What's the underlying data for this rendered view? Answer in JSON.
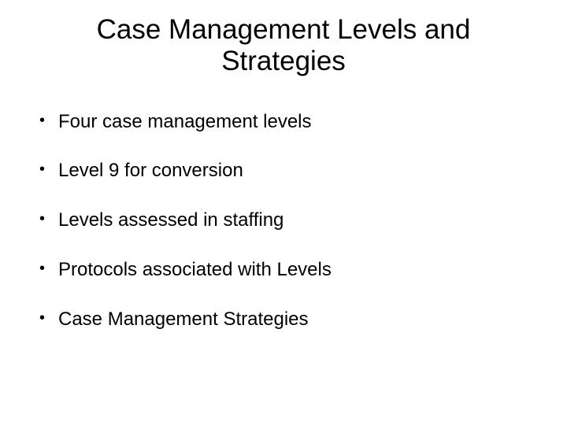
{
  "slide": {
    "title": "Case Management Levels and Strategies",
    "title_fontsize": 35,
    "title_color": "#000000",
    "bullets": [
      "Four case management levels",
      "Level 9 for conversion",
      "Levels assessed in staffing",
      "Protocols associated with Levels",
      "Case Management Strategies"
    ],
    "bullet_fontsize": 24,
    "bullet_color": "#000000",
    "background_color": "#ffffff",
    "font_family": "Arial"
  }
}
